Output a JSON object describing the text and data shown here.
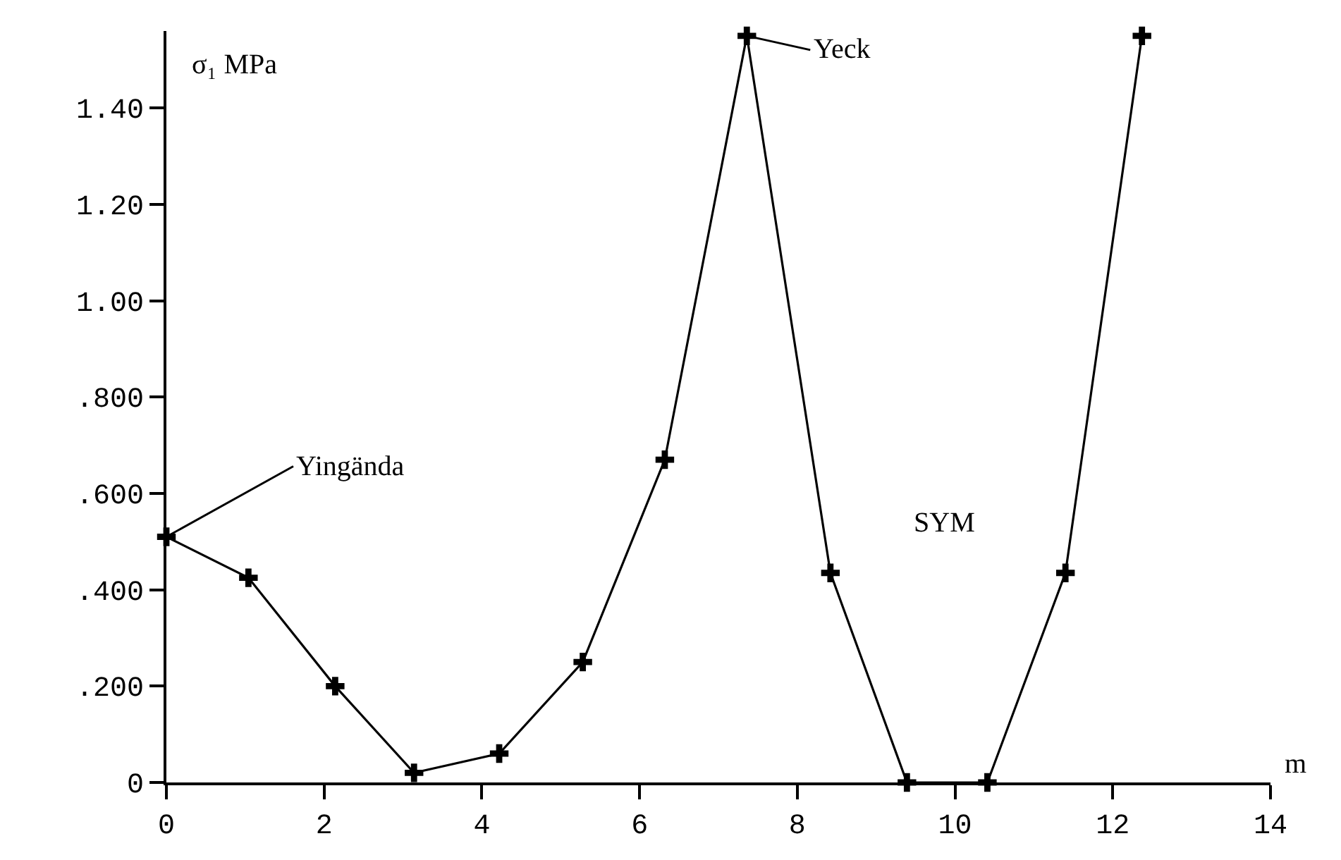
{
  "chart_data": {
    "type": "line",
    "ylabel": "σ₁ MPa",
    "xlabel": "m",
    "x": [
      0,
      1.04,
      2.14,
      3.14,
      4.22,
      5.28,
      6.32,
      7.36,
      8.42,
      9.39,
      10.41,
      11.4,
      12.37
    ],
    "series": [
      {
        "color": "#000000",
        "values": [
          0.51,
          0.425,
          0.2,
          0.02,
          0.06,
          0.25,
          0.67,
          1.55,
          0.435,
          0,
          0,
          0.435,
          1.55
        ]
      }
    ],
    "xlim": [
      0,
      14
    ],
    "xticks": [
      0,
      2,
      4,
      6,
      8,
      10,
      12,
      14
    ],
    "ylim": [
      0,
      1.56
    ],
    "yticks": [
      0,
      {
        "value": 0.2,
        "label": ".200"
      },
      {
        "value": 0.4,
        "label": ".400"
      },
      {
        "value": 0.6,
        "label": ".600"
      },
      {
        "value": 0.8,
        "label": ".800"
      },
      {
        "value": 1.0,
        "label": "1.00"
      },
      {
        "value": 1.2,
        "label": "1.20"
      },
      {
        "value": 1.4,
        "label": "1.40"
      }
    ],
    "annotations": [
      {
        "text": "Yingända",
        "x": 0,
        "y": 0.51
      },
      {
        "text": "Yeck",
        "x": 7.36,
        "y": 1.55
      },
      "SYM"
    ],
    "marker": "cross",
    "line_style": "solid"
  }
}
